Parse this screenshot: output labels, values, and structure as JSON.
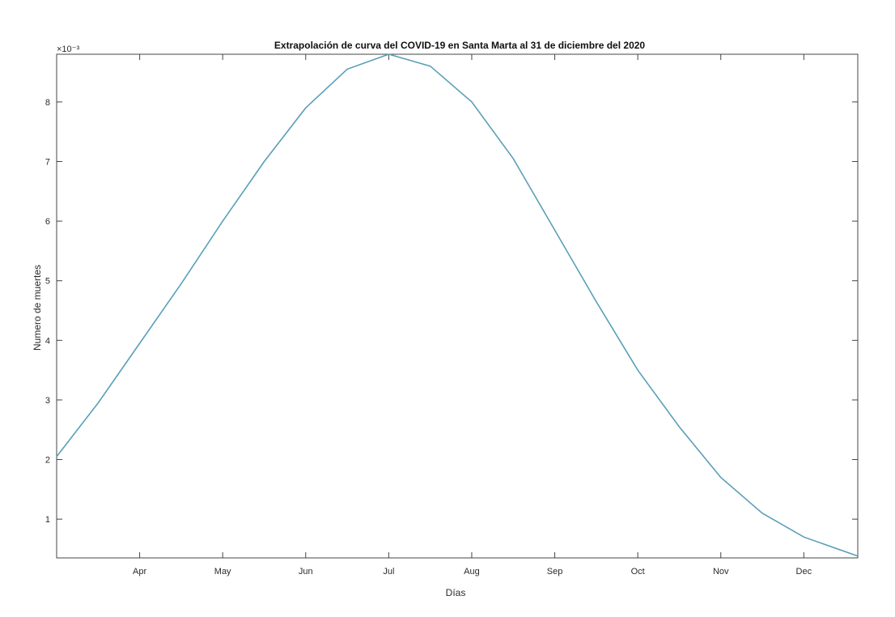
{
  "chart_data": {
    "type": "line",
    "title": "Extrapolación de curva del COVID-19 en Santa Marta al 31 de diciembre del 2020",
    "xlabel": "Días",
    "ylabel": "Numero de muertes",
    "y_exponent_label": "×10⁻³",
    "x_tick_labels": [
      "Apr",
      "May",
      "Jun",
      "Jul",
      "Aug",
      "Sep",
      "Oct",
      "Nov",
      "Dec"
    ],
    "y_tick_labels": [
      "1",
      "2",
      "3",
      "4",
      "5",
      "6",
      "7",
      "8"
    ],
    "y_ticks": [
      1,
      2,
      3,
      4,
      5,
      6,
      7,
      8
    ],
    "x_ticks_month_index": [
      1,
      2,
      3,
      4,
      5,
      6,
      7,
      8,
      9
    ],
    "xlim_month_index": [
      0,
      9.65
    ],
    "ylim": [
      0.35,
      8.8
    ],
    "y_scale_note": "values ×10⁻³",
    "grid": false,
    "series": [
      {
        "color": "#5a9fb8",
        "x_month_index": [
          0.0,
          0.5,
          1.0,
          1.5,
          2.0,
          2.5,
          3.0,
          3.5,
          4.0,
          4.5,
          5.0,
          5.5,
          6.0,
          6.5,
          7.0,
          7.5,
          8.0,
          8.5,
          9.0,
          9.65
        ],
        "values": [
          2.05,
          2.95,
          3.95,
          4.95,
          6.0,
          7.0,
          7.9,
          8.55,
          8.8,
          8.6,
          8.0,
          7.05,
          5.85,
          4.65,
          3.5,
          2.55,
          1.7,
          1.1,
          0.7,
          0.38
        ]
      }
    ]
  }
}
